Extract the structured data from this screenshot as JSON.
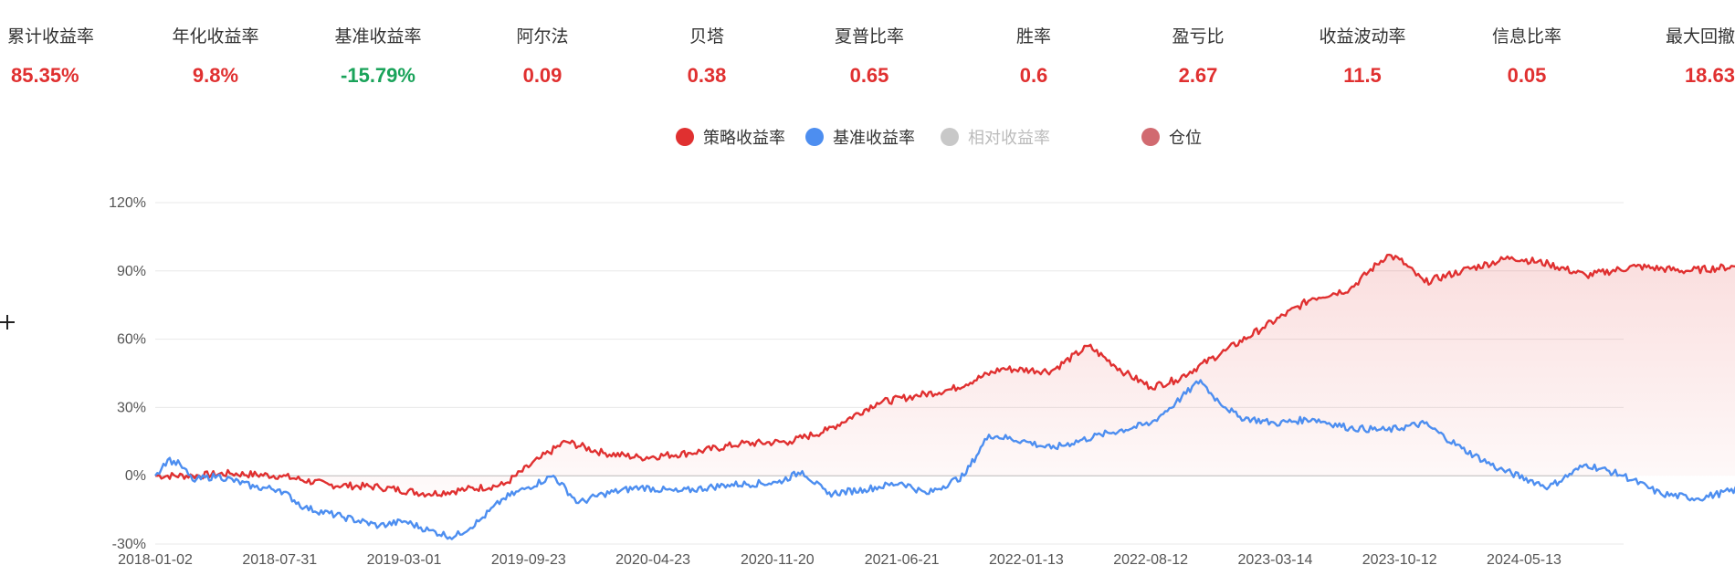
{
  "metrics": [
    {
      "label": "累计收益率",
      "value": "85.35%",
      "color": "#e03030"
    },
    {
      "label": "年化收益率",
      "value": "9.8%",
      "color": "#e03030"
    },
    {
      "label": "基准收益率",
      "value": "-15.79%",
      "color": "#1aa35a"
    },
    {
      "label": "阿尔法",
      "value": "0.09",
      "color": "#e03030"
    },
    {
      "label": "贝塔",
      "value": "0.38",
      "color": "#e03030"
    },
    {
      "label": "夏普比率",
      "value": "0.65",
      "color": "#e03030"
    },
    {
      "label": "胜率",
      "value": "0.6",
      "color": "#e03030"
    },
    {
      "label": "盈亏比",
      "value": "2.67",
      "color": "#e03030"
    },
    {
      "label": "收益波动率",
      "value": "11.5",
      "color": "#e03030"
    },
    {
      "label": "信息比率",
      "value": "0.05",
      "color": "#e03030"
    },
    {
      "label": "最大回撤",
      "value": "18.63",
      "color": "#e03030"
    }
  ],
  "legend": [
    {
      "label": "策略收益率",
      "color": "#e03030",
      "active": true
    },
    {
      "label": "基准收益率",
      "color": "#4d8ef0",
      "active": true
    },
    {
      "label": "相对收益率",
      "color": "#c8c8c8",
      "active": false
    },
    {
      "label": "仓位",
      "color": "#d16a70",
      "active": true
    }
  ],
  "chart_data": {
    "type": "line",
    "x_ticks": [
      "2018-01-02",
      "2018-07-31",
      "2019-03-01",
      "2019-09-23",
      "2020-04-23",
      "2020-11-20",
      "2021-06-21",
      "2022-01-13",
      "2022-08-12",
      "2023-03-14",
      "2023-10-12",
      "2024-05-13"
    ],
    "y_ticks": [
      "120%",
      "90%",
      "60%",
      "30%",
      "0%",
      "-30%"
    ],
    "ylim": [
      -30,
      120
    ],
    "grid": true,
    "legend_position": "top",
    "series": [
      {
        "name": "策略收益率",
        "color": "#e03030",
        "area": true,
        "points": [
          [
            0,
            0
          ],
          [
            0.3,
            0
          ],
          [
            0.6,
            1
          ],
          [
            1,
            0
          ],
          [
            1.4,
            -4
          ],
          [
            1.8,
            -5
          ],
          [
            2.2,
            -8
          ],
          [
            2.5,
            -6
          ],
          [
            2.8,
            -4
          ],
          [
            3.1,
            8
          ],
          [
            3.3,
            15
          ],
          [
            3.6,
            10
          ],
          [
            3.9,
            8
          ],
          [
            4.3,
            10
          ],
          [
            4.7,
            14
          ],
          [
            5.1,
            15
          ],
          [
            5.4,
            20
          ],
          [
            5.8,
            32
          ],
          [
            6.1,
            35
          ],
          [
            6.4,
            38
          ],
          [
            6.8,
            47
          ],
          [
            7.2,
            46
          ],
          [
            7.5,
            57
          ],
          [
            7.8,
            45
          ],
          [
            8,
            39
          ],
          [
            8.2,
            42
          ],
          [
            8.6,
            55
          ],
          [
            8.9,
            65
          ],
          [
            9.3,
            78
          ],
          [
            9.6,
            82
          ],
          [
            9.9,
            97
          ],
          [
            10,
            95
          ],
          [
            10.2,
            85
          ],
          [
            10.5,
            90
          ],
          [
            10.9,
            96
          ],
          [
            11.2,
            93
          ],
          [
            11.5,
            88
          ],
          [
            11.9,
            92
          ],
          [
            12.3,
            90
          ],
          [
            12.7,
            92
          ],
          [
            13.2,
            88
          ],
          [
            13.5,
            85
          ],
          [
            13.9,
            80
          ],
          [
            14.3,
            88
          ],
          [
            14.6,
            90
          ],
          [
            14.8,
            85.35
          ]
        ]
      },
      {
        "name": "基准收益率",
        "color": "#4d8ef0",
        "area": false,
        "points": [
          [
            0,
            0
          ],
          [
            0.1,
            7
          ],
          [
            0.2,
            5
          ],
          [
            0.3,
            -2
          ],
          [
            0.5,
            0
          ],
          [
            0.8,
            -5
          ],
          [
            1,
            -6
          ],
          [
            1.2,
            -14
          ],
          [
            1.5,
            -18
          ],
          [
            1.8,
            -22
          ],
          [
            2,
            -20
          ],
          [
            2.2,
            -24
          ],
          [
            2.4,
            -27
          ],
          [
            2.6,
            -20
          ],
          [
            2.8,
            -10
          ],
          [
            3,
            -5
          ],
          [
            3.2,
            0
          ],
          [
            3.4,
            -12
          ],
          [
            3.6,
            -8
          ],
          [
            3.9,
            -5
          ],
          [
            4.2,
            -7
          ],
          [
            4.6,
            -4
          ],
          [
            5,
            -3
          ],
          [
            5.2,
            2
          ],
          [
            5.4,
            -8
          ],
          [
            5.7,
            -6
          ],
          [
            6,
            -3
          ],
          [
            6.2,
            -8
          ],
          [
            6.5,
            0
          ],
          [
            6.7,
            18
          ],
          [
            7,
            15
          ],
          [
            7.2,
            12
          ],
          [
            7.6,
            18
          ],
          [
            8,
            23
          ],
          [
            8.2,
            32
          ],
          [
            8.4,
            42
          ],
          [
            8.5,
            35
          ],
          [
            8.7,
            26
          ],
          [
            9,
            23
          ],
          [
            9.3,
            25
          ],
          [
            9.6,
            21
          ],
          [
            9.9,
            20
          ],
          [
            10.2,
            23
          ],
          [
            10.5,
            12
          ],
          [
            10.8,
            3
          ],
          [
            11.2,
            -5
          ],
          [
            11.5,
            5
          ],
          [
            11.8,
            0
          ],
          [
            12.1,
            -8
          ],
          [
            12.4,
            -10
          ],
          [
            12.8,
            -5
          ],
          [
            13.2,
            -7
          ],
          [
            13.6,
            -13
          ],
          [
            13.9,
            -18
          ],
          [
            14.3,
            -18
          ],
          [
            14.6,
            -14
          ],
          [
            14.8,
            -15.79
          ]
        ]
      }
    ]
  }
}
